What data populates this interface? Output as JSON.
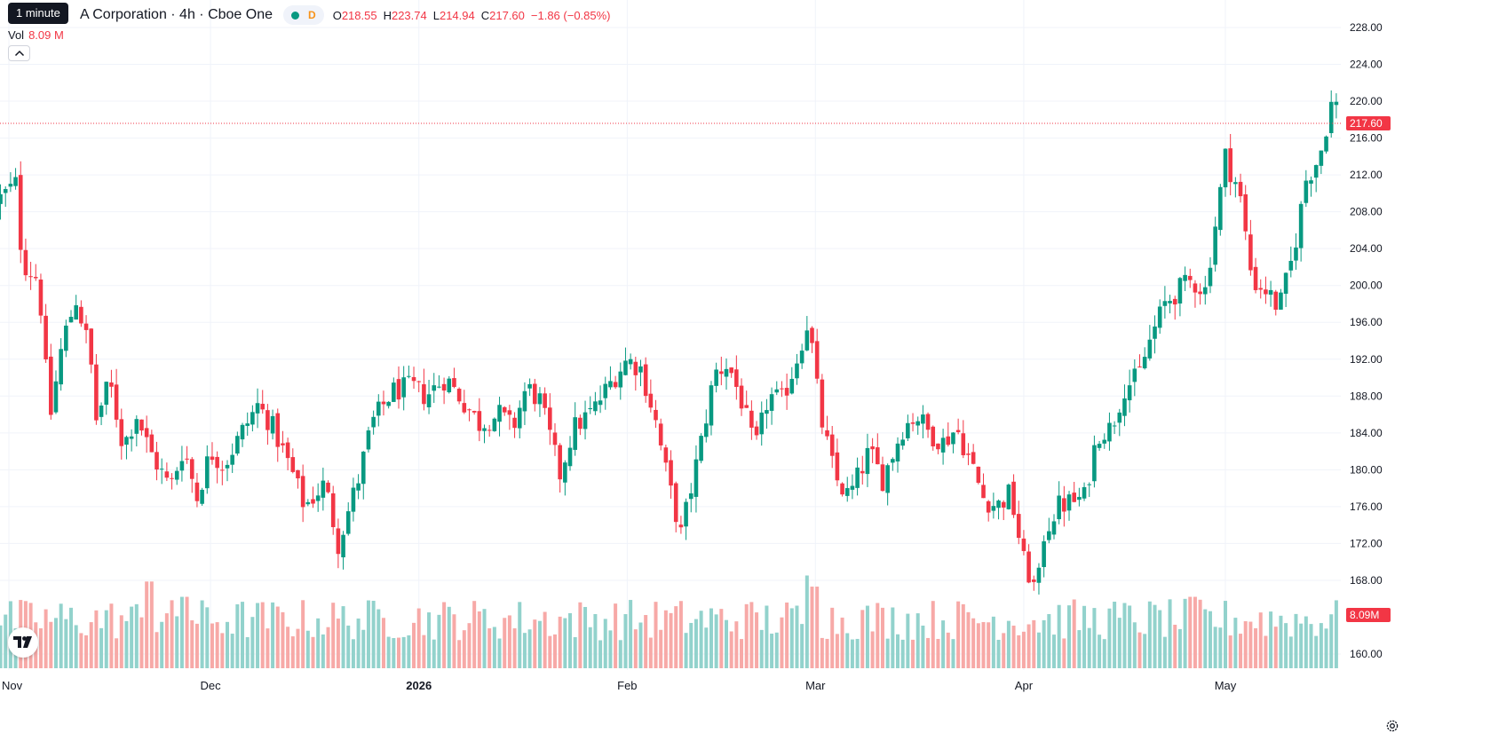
{
  "header": {
    "tooltip": "1 minute",
    "symbol_title": "A Corporation · 4h · Cboe One",
    "market_badge": "D",
    "ohlc": {
      "o_label": "O",
      "o": "218.55",
      "h_label": "H",
      "h": "223.74",
      "l_label": "L",
      "l": "214.94",
      "c_label": "C",
      "c": "217.60",
      "change": "−1.86 (−0.85%)"
    },
    "volume_label": "Vol",
    "volume_value": "8.09 M"
  },
  "colors": {
    "up": "#089981",
    "down": "#f23645",
    "up_volume": "#92d2cc",
    "down_volume": "#f7a9a7",
    "grid": "#f0f3fa",
    "text": "#131722"
  },
  "icons": {
    "collapse": "chevron-up-icon",
    "logo": "tradingview-logo-icon",
    "settings": "gear-icon"
  },
  "chart_data": {
    "type": "candlestick",
    "price_axis": {
      "ticks": [
        "228.00",
        "224.00",
        "220.00",
        "216.00",
        "212.00",
        "208.00",
        "204.00",
        "200.00",
        "196.00",
        "192.00",
        "188.00",
        "184.00",
        "180.00",
        "176.00",
        "172.00",
        "168.00",
        "160.00"
      ],
      "range": [
        160,
        228
      ]
    },
    "time_axis": {
      "ticks": [
        "Nov",
        "Dec",
        "2026",
        "Feb",
        "Mar",
        "Apr",
        "May"
      ],
      "range": [
        "2025-11-01",
        "2026-05-12"
      ]
    },
    "last_price_label": "217.60",
    "last_volume_label": "8.09M",
    "grid": true,
    "keypoints": [
      [
        "2025-10-30",
        209.0
      ],
      [
        "2025-11-02",
        211.0
      ],
      [
        "2025-11-03",
        202.5
      ],
      [
        "2025-11-05",
        201.0
      ],
      [
        "2025-11-06",
        196.5
      ],
      [
        "2025-11-07",
        185.0
      ],
      [
        "2025-11-09",
        194.0
      ],
      [
        "2025-11-11",
        198.5
      ],
      [
        "2025-11-13",
        193.0
      ],
      [
        "2025-11-14",
        185.5
      ],
      [
        "2025-11-16",
        189.5
      ],
      [
        "2025-11-18",
        182.5
      ],
      [
        "2025-11-20",
        186.0
      ],
      [
        "2025-11-22",
        182.0
      ],
      [
        "2025-11-25",
        178.0
      ],
      [
        "2025-11-27",
        182.5
      ],
      [
        "2025-11-29",
        177.0
      ],
      [
        "2025-12-01",
        182.0
      ],
      [
        "2025-12-03",
        180.5
      ],
      [
        "2025-12-06",
        184.5
      ],
      [
        "2025-12-08",
        187.0
      ],
      [
        "2025-12-10",
        185.0
      ],
      [
        "2025-12-13",
        180.0
      ],
      [
        "2025-12-15",
        176.0
      ],
      [
        "2025-12-18",
        178.5
      ],
      [
        "2025-12-20",
        172.0
      ],
      [
        "2025-12-23",
        179.0
      ],
      [
        "2025-12-25",
        185.0
      ],
      [
        "2025-12-28",
        188.5
      ],
      [
        "2025-12-31",
        189.0
      ],
      [
        "2026-01-02",
        188.0
      ],
      [
        "2026-01-05",
        190.0
      ],
      [
        "2026-01-07",
        188.0
      ],
      [
        "2026-01-10",
        185.0
      ],
      [
        "2026-01-13",
        186.0
      ],
      [
        "2026-01-15",
        184.5
      ],
      [
        "2026-01-17",
        189.0
      ],
      [
        "2026-01-19",
        187.5
      ],
      [
        "2026-01-22",
        179.5
      ],
      [
        "2026-01-24",
        184.5
      ],
      [
        "2026-01-27",
        186.5
      ],
      [
        "2026-01-30",
        190.0
      ],
      [
        "2026-02-01",
        192.0
      ],
      [
        "2026-02-03",
        191.0
      ],
      [
        "2026-02-05",
        186.0
      ],
      [
        "2026-02-07",
        179.0
      ],
      [
        "2026-02-09",
        173.0
      ],
      [
        "2026-02-12",
        183.0
      ],
      [
        "2026-02-14",
        190.5
      ],
      [
        "2026-02-16",
        191.5
      ],
      [
        "2026-02-18",
        187.5
      ],
      [
        "2026-02-20",
        182.0
      ],
      [
        "2026-02-22",
        188.0
      ],
      [
        "2026-02-24",
        187.5
      ],
      [
        "2026-02-26",
        191.5
      ],
      [
        "2026-02-28",
        196.5
      ],
      [
        "2026-03-01",
        190.0
      ],
      [
        "2026-03-02",
        185.0
      ],
      [
        "2026-03-04",
        179.0
      ],
      [
        "2026-03-06",
        177.0
      ],
      [
        "2026-03-09",
        182.0
      ],
      [
        "2026-03-11",
        179.0
      ],
      [
        "2026-03-14",
        184.5
      ],
      [
        "2026-03-16",
        186.0
      ],
      [
        "2026-03-18",
        184.0
      ],
      [
        "2026-03-20",
        183.0
      ],
      [
        "2026-03-22",
        184.5
      ],
      [
        "2026-03-24",
        181.0
      ],
      [
        "2026-03-26",
        177.0
      ],
      [
        "2026-03-28",
        176.0
      ],
      [
        "2026-03-30",
        177.5
      ],
      [
        "2026-04-01",
        170.0
      ],
      [
        "2026-04-03",
        166.5
      ],
      [
        "2026-04-04",
        173.0
      ],
      [
        "2026-04-06",
        176.0
      ],
      [
        "2026-04-08",
        176.5
      ],
      [
        "2026-04-10",
        177.0
      ],
      [
        "2026-04-12",
        184.0
      ],
      [
        "2026-04-14",
        184.5
      ],
      [
        "2026-04-16",
        189.0
      ],
      [
        "2026-04-18",
        190.0
      ],
      [
        "2026-04-20",
        194.5
      ],
      [
        "2026-04-22",
        198.0
      ],
      [
        "2026-04-24",
        199.5
      ],
      [
        "2026-04-26",
        200.5
      ],
      [
        "2026-04-28",
        199.5
      ],
      [
        "2026-04-30",
        209.0
      ],
      [
        "2026-05-01",
        214.0
      ],
      [
        "2026-05-02",
        212.0
      ],
      [
        "2026-05-03",
        210.5
      ],
      [
        "2026-05-05",
        200.5
      ],
      [
        "2026-05-07",
        199.5
      ],
      [
        "2026-05-09",
        197.5
      ],
      [
        "2026-05-11",
        203.0
      ],
      [
        "2026-05-13",
        211.5
      ],
      [
        "2026-05-15",
        214.0
      ],
      [
        "2026-05-17",
        220.5
      ],
      [
        "2026-05-18",
        218.5
      ],
      [
        "2026-05-19",
        217.6
      ]
    ],
    "volume_spikes": [
      [
        "2025-11-22",
        1.7
      ],
      [
        "2025-11-27",
        1.4
      ],
      [
        "2026-02-28",
        2.1
      ],
      [
        "2026-03-01",
        1.6
      ],
      [
        "2026-04-26",
        1.4
      ]
    ]
  }
}
